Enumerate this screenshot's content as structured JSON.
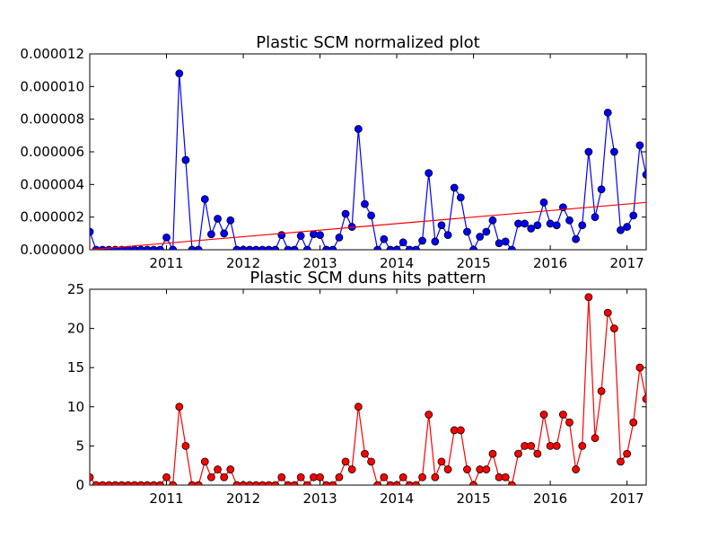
{
  "chart_data": [
    {
      "type": "line",
      "title": "Plastic SCM normalized plot",
      "xlabel": "",
      "ylabel": "",
      "x_ticks": [
        "2011",
        "2012",
        "2013",
        "2014",
        "2015",
        "2016",
        "2017"
      ],
      "y_ticks": [
        "0.000000",
        "0.000002",
        "0.000004",
        "0.000006",
        "0.000008",
        "0.000010",
        "0.000012"
      ],
      "xlim": [
        "2010-01",
        "2017-04"
      ],
      "ylim": [
        0,
        1.2e-05
      ],
      "grid": false,
      "series": [
        {
          "kind": "line-markers",
          "color": "#0000ff",
          "marker_color": "#0000ff",
          "x": [
            "2010-01",
            "2010-02",
            "2010-03",
            "2010-04",
            "2010-05",
            "2010-06",
            "2010-07",
            "2010-08",
            "2010-09",
            "2010-10",
            "2010-11",
            "2010-12",
            "2011-01",
            "2011-02",
            "2011-03",
            "2011-04",
            "2011-05",
            "2011-06",
            "2011-07",
            "2011-08",
            "2011-09",
            "2011-10",
            "2011-11",
            "2011-12",
            "2012-01",
            "2012-02",
            "2012-03",
            "2012-04",
            "2012-05",
            "2012-06",
            "2012-07",
            "2012-08",
            "2012-09",
            "2012-10",
            "2012-11",
            "2012-12",
            "2013-01",
            "2013-02",
            "2013-03",
            "2013-04",
            "2013-05",
            "2013-06",
            "2013-07",
            "2013-08",
            "2013-09",
            "2013-10",
            "2013-11",
            "2013-12",
            "2014-01",
            "2014-02",
            "2014-03",
            "2014-04",
            "2014-05",
            "2014-06",
            "2014-07",
            "2014-08",
            "2014-09",
            "2014-10",
            "2014-11",
            "2014-12",
            "2015-01",
            "2015-02",
            "2015-03",
            "2015-04",
            "2015-05",
            "2015-06",
            "2015-07",
            "2015-08",
            "2015-09",
            "2015-10",
            "2015-11",
            "2015-12",
            "2016-01",
            "2016-02",
            "2016-03",
            "2016-04",
            "2016-05",
            "2016-06",
            "2016-07",
            "2016-08",
            "2016-09",
            "2016-10",
            "2016-11",
            "2016-12",
            "2017-01",
            "2017-02",
            "2017-03",
            "2017-04"
          ],
          "values": [
            1.1e-06,
            0,
            0,
            0,
            0,
            0,
            0,
            0,
            0,
            0,
            0,
            0,
            7.5e-07,
            0,
            1.08e-05,
            5.5e-06,
            0,
            0,
            3.1e-06,
            9.5e-07,
            1.9e-06,
            1e-06,
            1.8e-06,
            0,
            0,
            0,
            0,
            0,
            0,
            0,
            9e-07,
            0,
            0,
            8.5e-07,
            0,
            9.5e-07,
            9e-07,
            0,
            0,
            7.5e-07,
            2.2e-06,
            1.4e-06,
            7.4e-06,
            2.8e-06,
            2.1e-06,
            0,
            6.5e-07,
            0,
            0,
            4.5e-07,
            0,
            0,
            5.5e-07,
            4.7e-06,
            5e-07,
            1.5e-06,
            9e-07,
            3.8e-06,
            3.2e-06,
            1.1e-06,
            0,
            8e-07,
            1.1e-06,
            1.8e-06,
            4e-07,
            5e-07,
            0,
            1.6e-06,
            1.6e-06,
            1.3e-06,
            1.5e-06,
            2.9e-06,
            1.6e-06,
            1.5e-06,
            2.6e-06,
            1.8e-06,
            6.5e-07,
            1.5e-06,
            6e-06,
            2e-06,
            3.7e-06,
            8.4e-06,
            6e-06,
            1.2e-06,
            1.4e-06,
            2.1e-06,
            6.4e-06,
            4.6e-06
          ]
        },
        {
          "kind": "trend-line",
          "color": "#ff0000",
          "x": [
            "2010-01",
            "2017-04"
          ],
          "values": [
            0,
            2.9e-06
          ]
        }
      ]
    },
    {
      "type": "line",
      "title": "Plastic SCM duns hits pattern",
      "xlabel": "",
      "ylabel": "",
      "x_ticks": [
        "2011",
        "2012",
        "2013",
        "2014",
        "2015",
        "2016",
        "2017"
      ],
      "y_ticks": [
        "0",
        "5",
        "10",
        "15",
        "20",
        "25"
      ],
      "xlim": [
        "2010-01",
        "2017-04"
      ],
      "ylim": [
        0,
        25
      ],
      "grid": false,
      "series": [
        {
          "kind": "line-markers",
          "color": "#ff0000",
          "marker_color": "#ff0000",
          "x": [
            "2010-01",
            "2010-02",
            "2010-03",
            "2010-04",
            "2010-05",
            "2010-06",
            "2010-07",
            "2010-08",
            "2010-09",
            "2010-10",
            "2010-11",
            "2010-12",
            "2011-01",
            "2011-02",
            "2011-03",
            "2011-04",
            "2011-05",
            "2011-06",
            "2011-07",
            "2011-08",
            "2011-09",
            "2011-10",
            "2011-11",
            "2011-12",
            "2012-01",
            "2012-02",
            "2012-03",
            "2012-04",
            "2012-05",
            "2012-06",
            "2012-07",
            "2012-08",
            "2012-09",
            "2012-10",
            "2012-11",
            "2012-12",
            "2013-01",
            "2013-02",
            "2013-03",
            "2013-04",
            "2013-05",
            "2013-06",
            "2013-07",
            "2013-08",
            "2013-09",
            "2013-10",
            "2013-11",
            "2013-12",
            "2014-01",
            "2014-02",
            "2014-03",
            "2014-04",
            "2014-05",
            "2014-06",
            "2014-07",
            "2014-08",
            "2014-09",
            "2014-10",
            "2014-11",
            "2014-12",
            "2015-01",
            "2015-02",
            "2015-03",
            "2015-04",
            "2015-05",
            "2015-06",
            "2015-07",
            "2015-08",
            "2015-09",
            "2015-10",
            "2015-11",
            "2015-12",
            "2016-01",
            "2016-02",
            "2016-03",
            "2016-04",
            "2016-05",
            "2016-06",
            "2016-07",
            "2016-08",
            "2016-09",
            "2016-10",
            "2016-11",
            "2016-12",
            "2017-01",
            "2017-02",
            "2017-03",
            "2017-04"
          ],
          "values": [
            1,
            0,
            0,
            0,
            0,
            0,
            0,
            0,
            0,
            0,
            0,
            0,
            1,
            0,
            10,
            5,
            0,
            0,
            3,
            1,
            2,
            1,
            2,
            0,
            0,
            0,
            0,
            0,
            0,
            0,
            1,
            0,
            0,
            1,
            0,
            1,
            1,
            0,
            0,
            1,
            3,
            2,
            10,
            4,
            3,
            0,
            1,
            0,
            0,
            1,
            0,
            0,
            1,
            9,
            1,
            3,
            2,
            7,
            7,
            2,
            0,
            2,
            2,
            4,
            1,
            1,
            0,
            4,
            5,
            5,
            4,
            9,
            5,
            5,
            9,
            8,
            2,
            5,
            24,
            6,
            12,
            22,
            20,
            3,
            4,
            8,
            15,
            11
          ]
        }
      ]
    }
  ]
}
